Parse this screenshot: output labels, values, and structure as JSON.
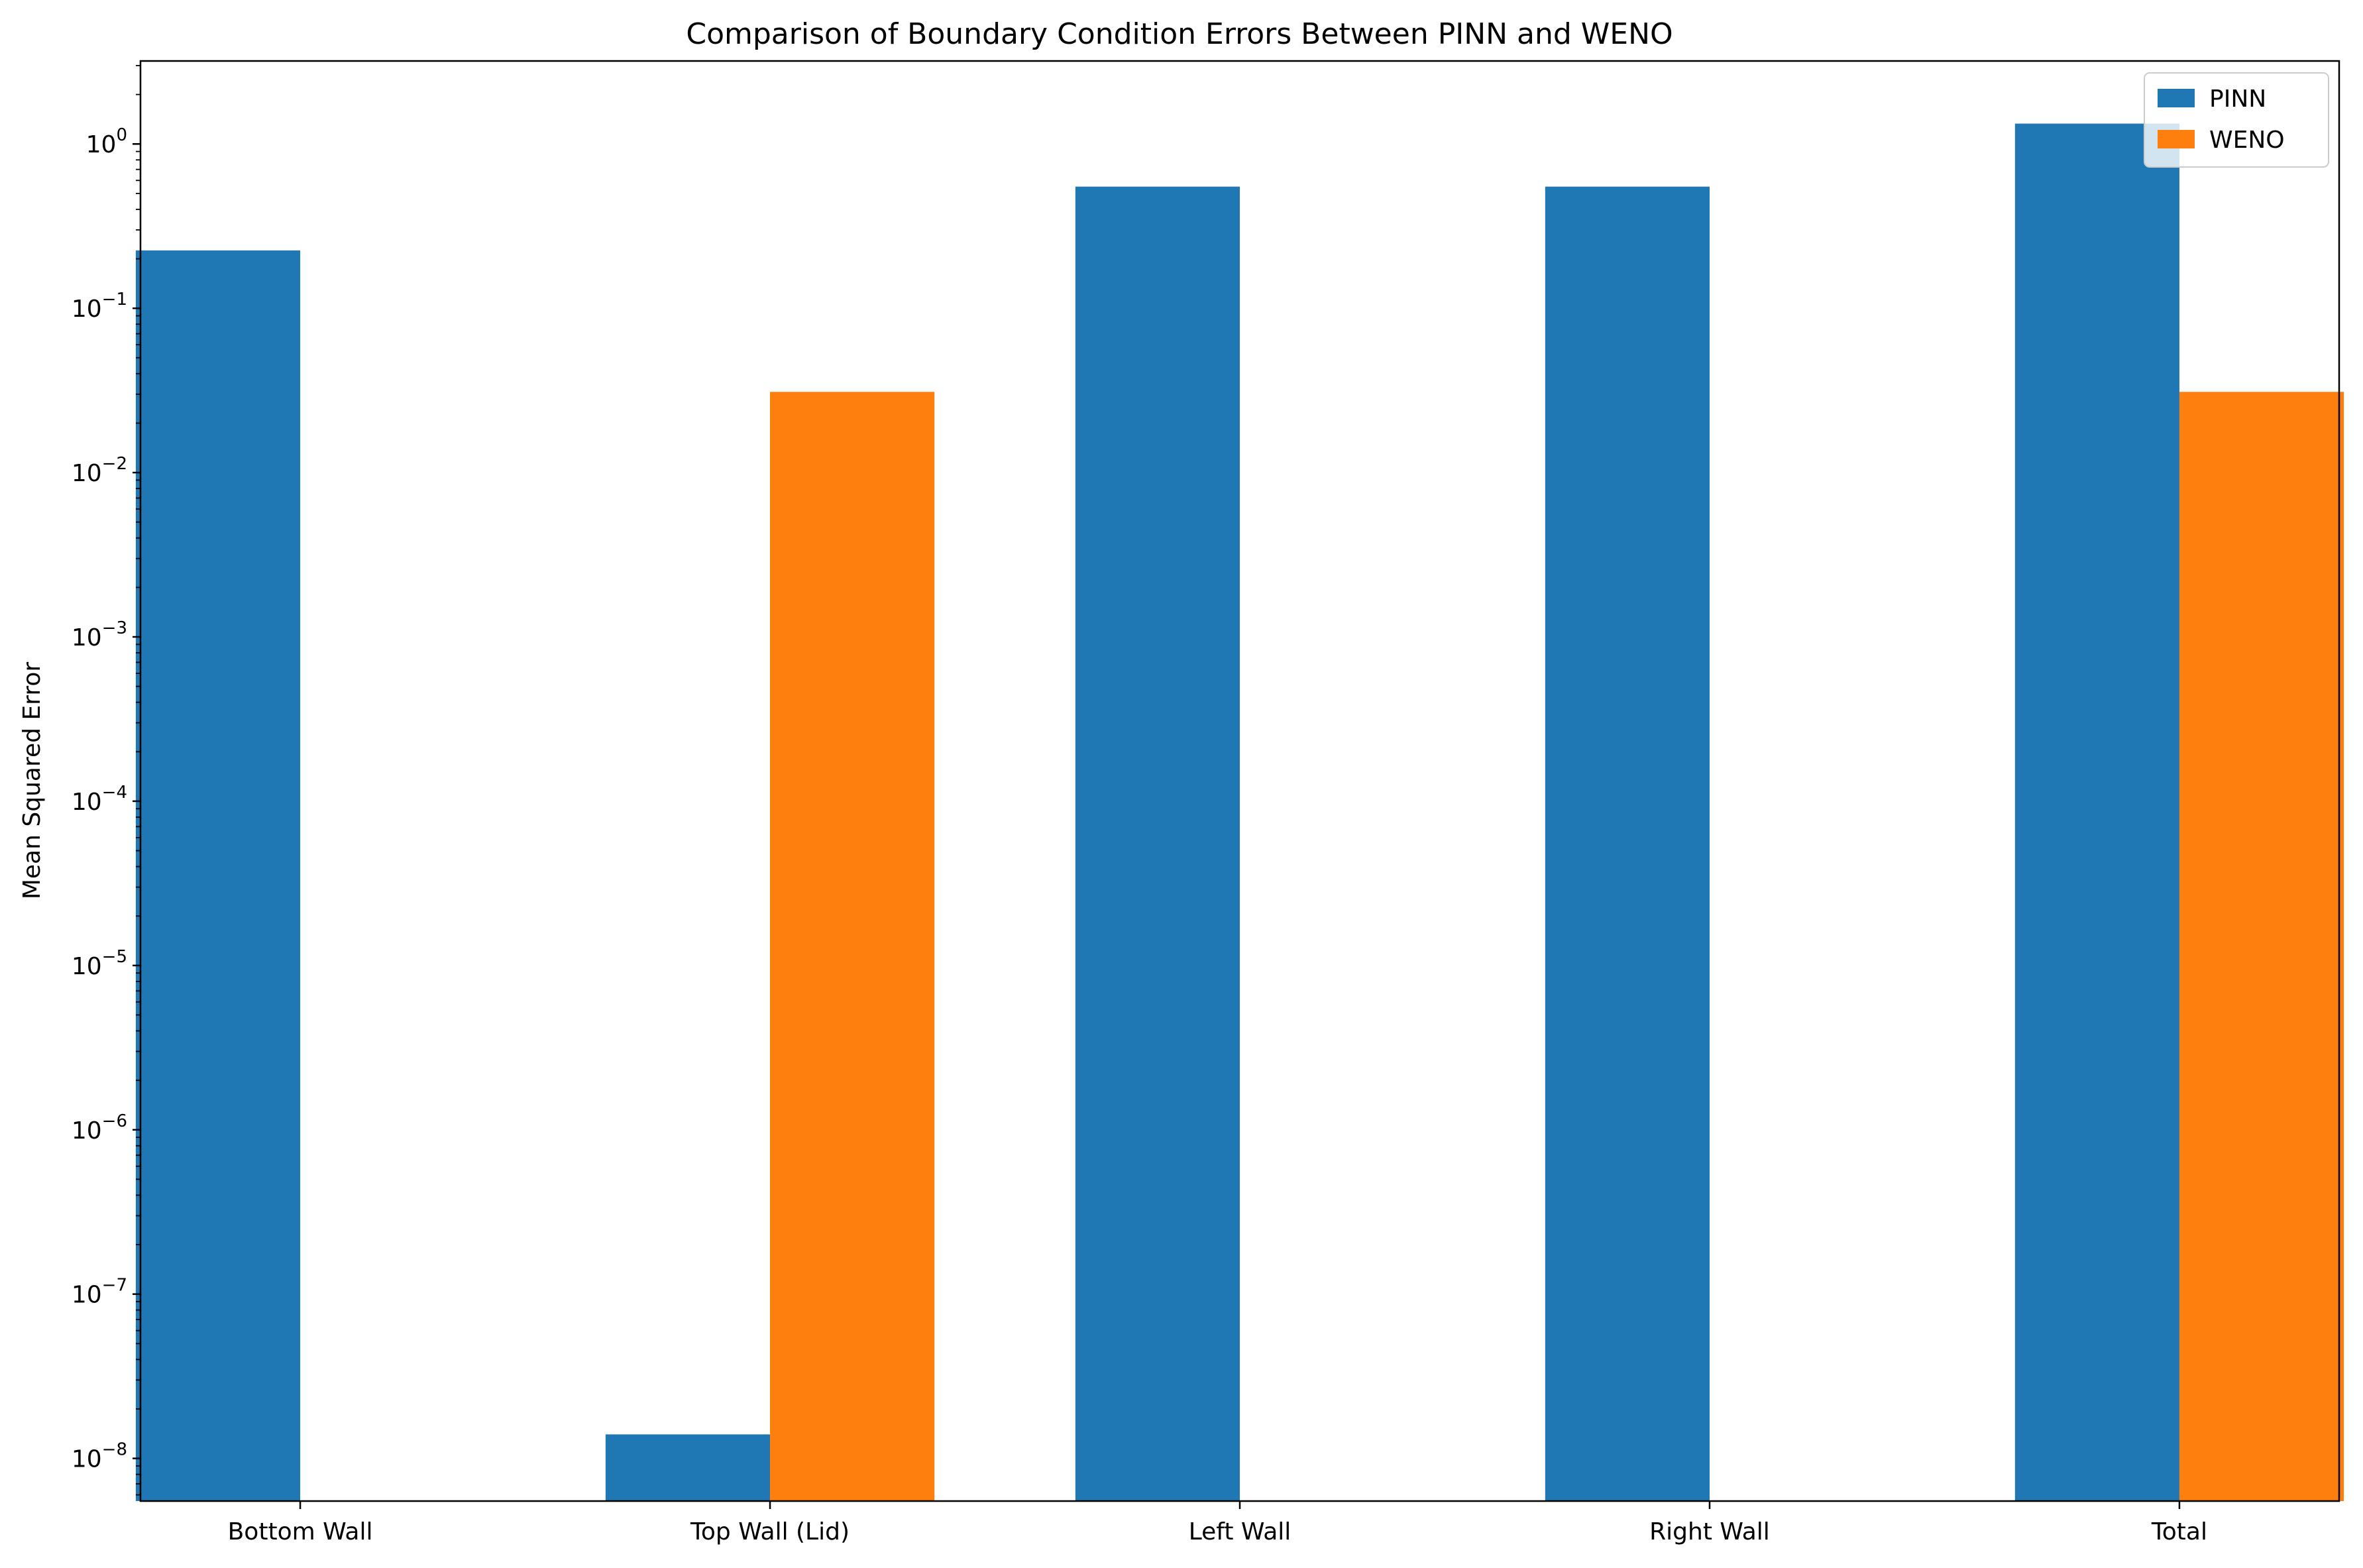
{
  "chart_data": {
    "type": "bar",
    "title": "Comparison of Boundary Condition Errors Between PINN and WENO",
    "xlabel": "",
    "ylabel": "Mean Squared Error",
    "yscale": "log",
    "ylim": [
      5.5e-09,
      3.2
    ],
    "yticks": [
      {
        "base": "10",
        "exp": "0",
        "value": 1
      },
      {
        "base": "10",
        "exp": "−1",
        "value": 0.1
      },
      {
        "base": "10",
        "exp": "−2",
        "value": 0.01
      },
      {
        "base": "10",
        "exp": "−3",
        "value": 0.001
      },
      {
        "base": "10",
        "exp": "−4",
        "value": 0.0001
      },
      {
        "base": "10",
        "exp": "−5",
        "value": 1e-05
      },
      {
        "base": "10",
        "exp": "−6",
        "value": 1e-06
      },
      {
        "base": "10",
        "exp": "−7",
        "value": 1e-07
      },
      {
        "base": "10",
        "exp": "−8",
        "value": 1e-08
      }
    ],
    "categories": [
      "Bottom Wall",
      "Top Wall (Lid)",
      "Left Wall",
      "Right Wall",
      "Total"
    ],
    "series": [
      {
        "name": "PINN",
        "color": "#1f77b4",
        "values": [
          0.225,
          1.4e-08,
          0.55,
          0.55,
          1.33
        ]
      },
      {
        "name": "WENO",
        "color": "#ff7f0e",
        "values": [
          0,
          0.031,
          0,
          0,
          0.031
        ]
      }
    ],
    "legend_position": "top-right",
    "grid": false
  }
}
